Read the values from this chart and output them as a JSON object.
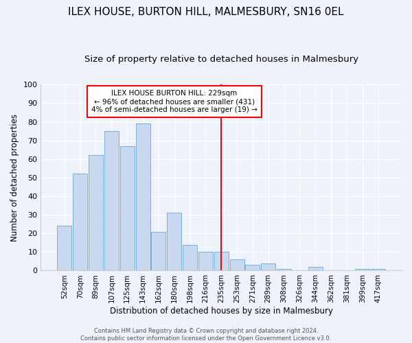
{
  "title": "ILEX HOUSE, BURTON HILL, MALMESBURY, SN16 0EL",
  "subtitle": "Size of property relative to detached houses in Malmesbury",
  "xlabel": "Distribution of detached houses by size in Malmesbury",
  "ylabel": "Number of detached properties",
  "bar_labels": [
    "52sqm",
    "70sqm",
    "89sqm",
    "107sqm",
    "125sqm",
    "143sqm",
    "162sqm",
    "180sqm",
    "198sqm",
    "216sqm",
    "235sqm",
    "253sqm",
    "271sqm",
    "289sqm",
    "308sqm",
    "326sqm",
    "344sqm",
    "362sqm",
    "381sqm",
    "399sqm",
    "417sqm"
  ],
  "bar_values": [
    24,
    52,
    62,
    75,
    67,
    79,
    21,
    31,
    14,
    10,
    10,
    6,
    3,
    4,
    1,
    0,
    2,
    0,
    0,
    1,
    1
  ],
  "bar_color": "#c8d9ef",
  "bar_edge_color": "#7aaedc",
  "vline_x": 10,
  "vline_color": "red",
  "annotation_title": "ILEX HOUSE BURTON HILL: 229sqm",
  "annotation_line1": "← 96% of detached houses are smaller (431)",
  "annotation_line2": "4% of semi-detached houses are larger (19) →",
  "annotation_box_color": "white",
  "annotation_box_edge_color": "red",
  "ylim": [
    0,
    100
  ],
  "yticks": [
    0,
    10,
    20,
    30,
    40,
    50,
    60,
    70,
    80,
    90,
    100
  ],
  "footer1": "Contains HM Land Registry data © Crown copyright and database right 2024.",
  "footer2": "Contains public sector information licensed under the Open Government Licence v3.0.",
  "bg_color": "#eef2fb",
  "title_fontsize": 11,
  "subtitle_fontsize": 9.5
}
